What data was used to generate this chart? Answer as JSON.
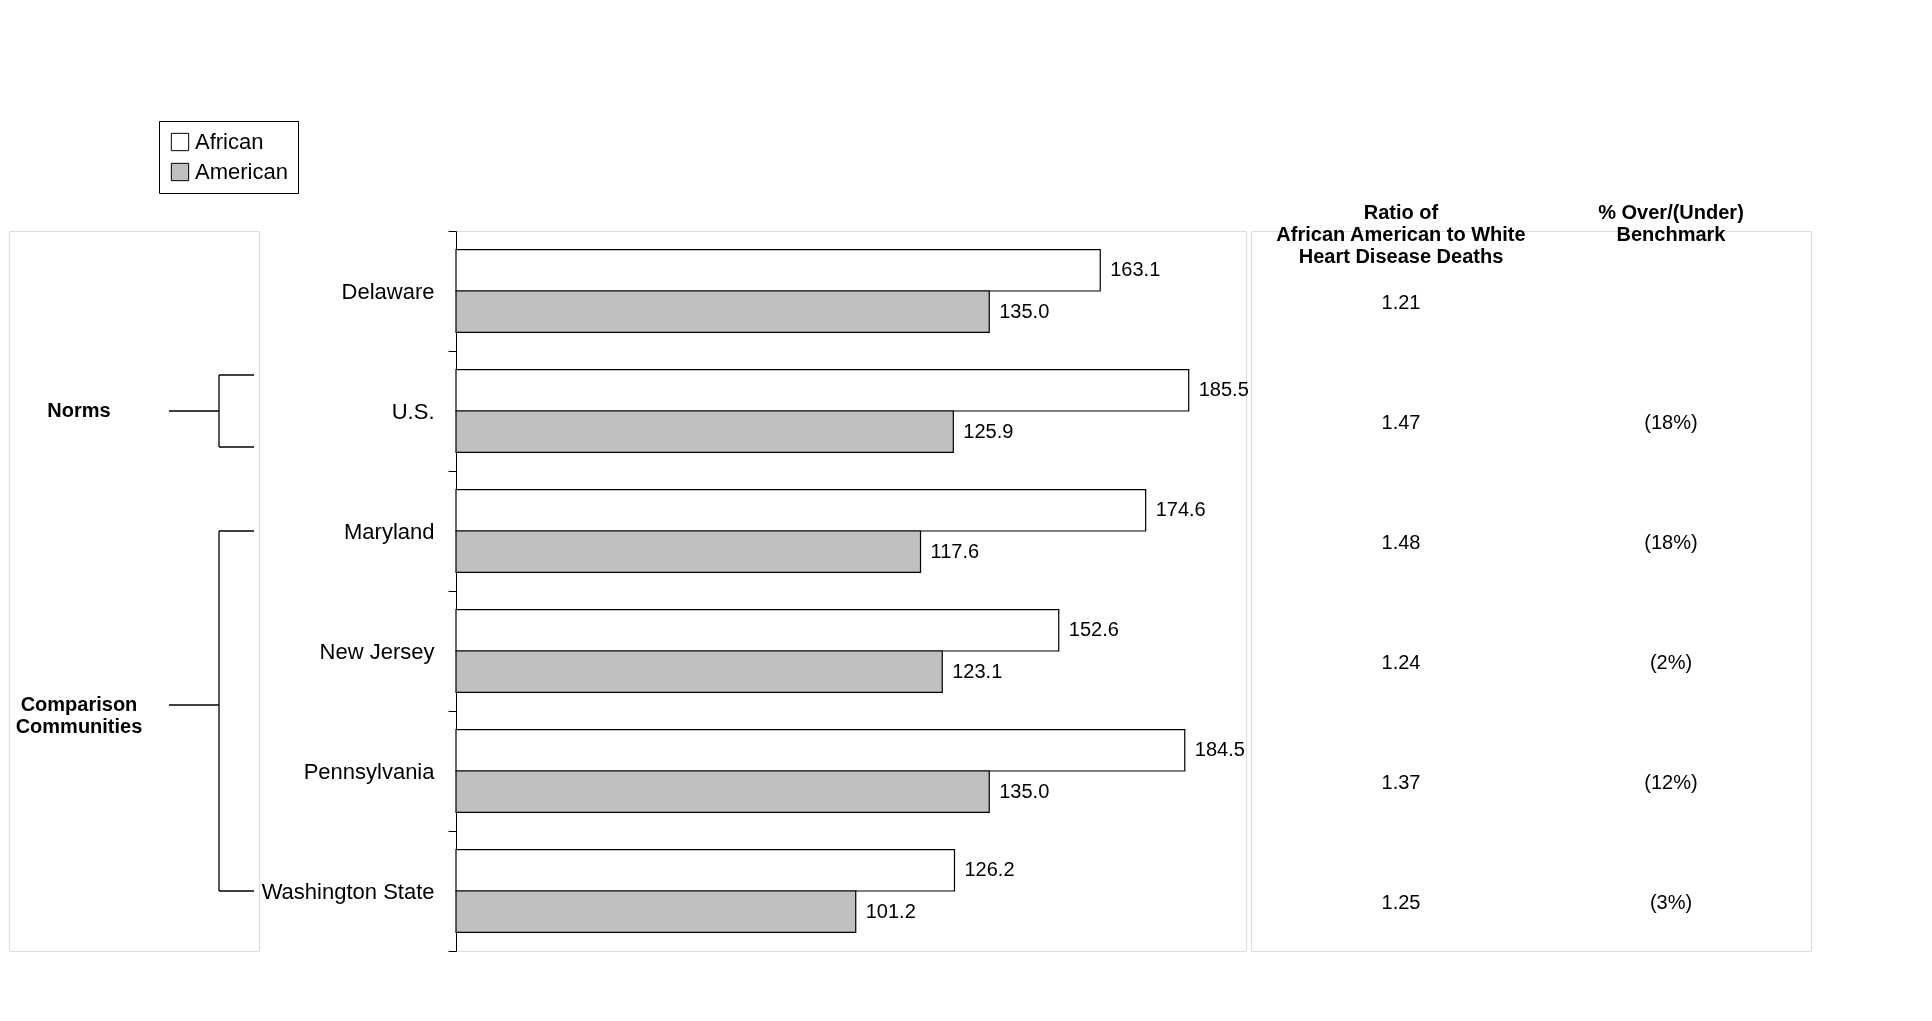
{
  "chart_data": {
    "type": "bar",
    "orientation": "horizontal",
    "categories": [
      "Delaware",
      "U.S.",
      "Maryland",
      "New Jersey",
      "Pennsylvania",
      "Washington State"
    ],
    "series": [
      {
        "name": "African",
        "color": "#ffffff",
        "values": [
          163.1,
          185.5,
          174.6,
          152.6,
          184.5,
          126.2
        ],
        "value_labels": [
          "163.1",
          "185.5",
          "174.6",
          "152.6",
          "184.5",
          "126.2"
        ]
      },
      {
        "name": "American",
        "color": "#c0c0c0",
        "values": [
          135.0,
          125.9,
          117.6,
          123.1,
          135.0,
          101.2
        ],
        "value_labels": [
          "135.0",
          "125.9",
          "117.6",
          "123.1",
          "135.0",
          "101.2"
        ]
      }
    ],
    "xlim": [
      0,
      200
    ],
    "legend": "top",
    "tick_labels": "y",
    "annotations": [
      "Ratio of\nAfrican American to White\nHeart Disease Deaths",
      "% Over/(Under)\nBenchmark",
      "Norms",
      "Comparison\nCommunities",
      "1.21",
      "1.47",
      "1.48",
      "1.24",
      "1.37",
      "1.25",
      "(18%)",
      "(18%)",
      "(2%)",
      "(12%)",
      "(3%)"
    ]
  }
}
